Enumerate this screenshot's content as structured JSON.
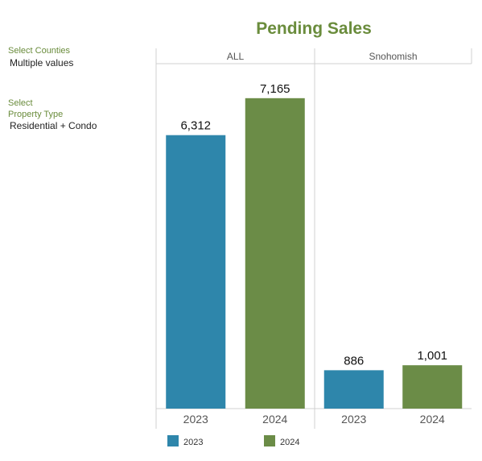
{
  "filters": {
    "counties_label": "Select Counties",
    "counties_value": "Multiple values",
    "property_label_line1": "Select",
    "property_label_line2": "Property Type",
    "property_value": "Residential + Condo"
  },
  "chart_data": {
    "type": "bar",
    "title": "Pending Sales",
    "panels": [
      {
        "name": "ALL",
        "categories": [
          "2023",
          "2024"
        ],
        "values": [
          6312,
          7165
        ]
      },
      {
        "name": "Snohomish",
        "categories": [
          "2023",
          "2024"
        ],
        "values": [
          886,
          1001
        ]
      }
    ],
    "value_labels": [
      [
        "6,312",
        "7,165"
      ],
      [
        "886",
        "1,001"
      ]
    ],
    "legend": [
      {
        "name": "2023",
        "color": "#2e86ab"
      },
      {
        "name": "2024",
        "color": "#6b8c47"
      }
    ],
    "ylim": [
      0,
      7850
    ],
    "grid": false,
    "legend_position": "bottom"
  }
}
